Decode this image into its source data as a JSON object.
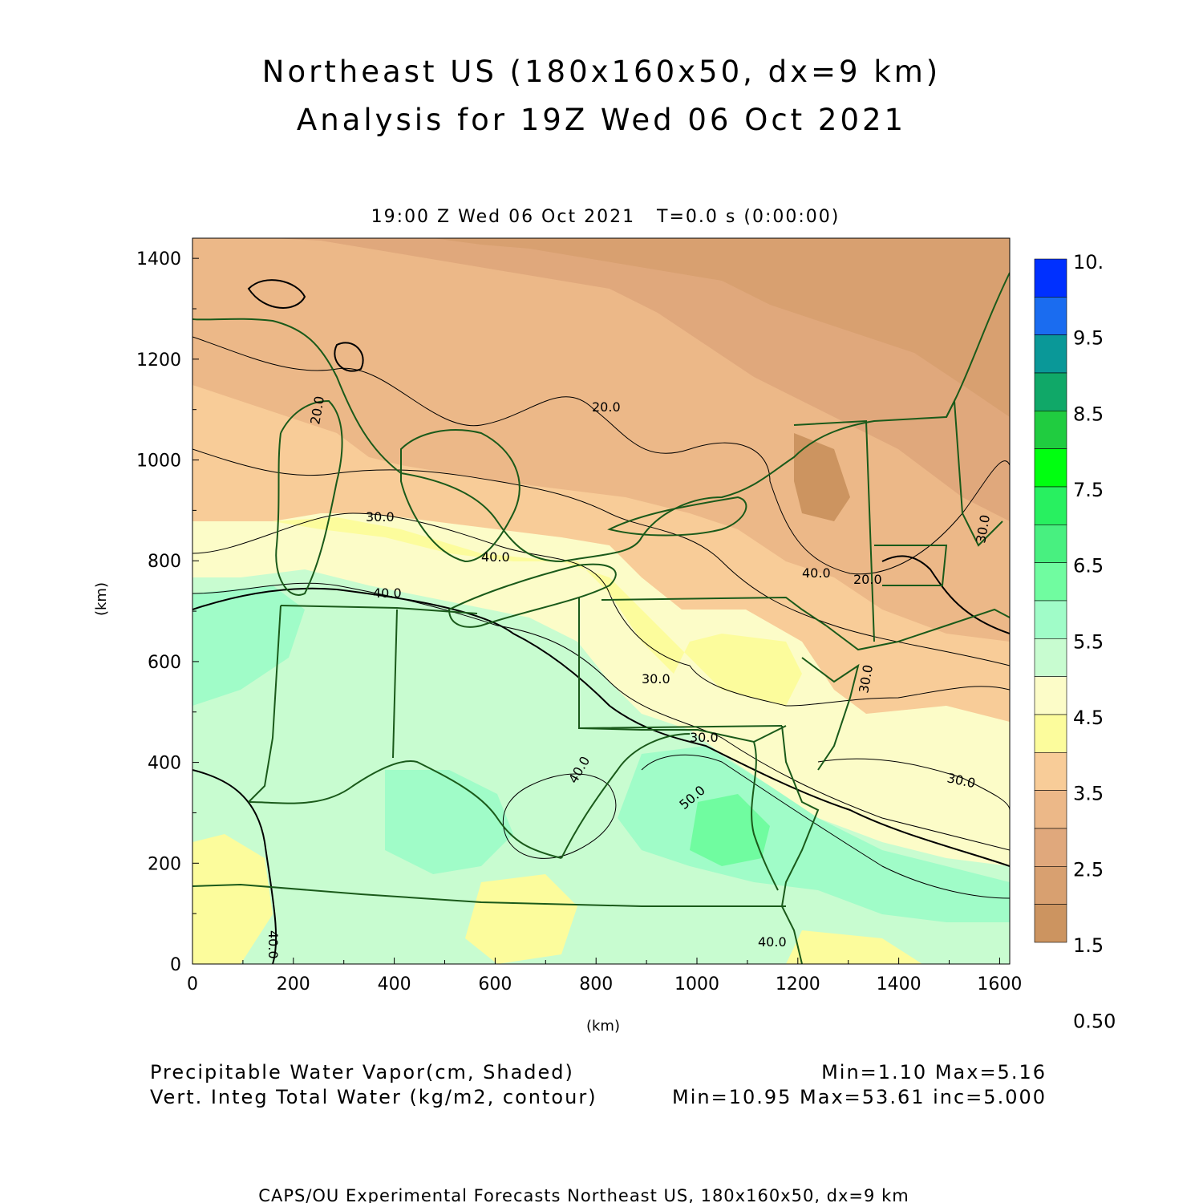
{
  "title": {
    "line1": "Northeast US (180x160x50, dx=9 km)",
    "line2": "Analysis for 19Z Wed 06 Oct 2021"
  },
  "valid_time": "19:00 Z Wed 06 Oct 2021   T=0.0 s (0:00:00)",
  "axes": {
    "x_unit": "(km)",
    "y_unit": "(km)",
    "x_ticks": [
      "0",
      "200",
      "400",
      "600",
      "800",
      "1000",
      "1200",
      "1400",
      "1600"
    ],
    "y_ticks": [
      "0",
      "200",
      "400",
      "600",
      "800",
      "1000",
      "1200",
      "1400"
    ],
    "x_range": [
      0,
      1620
    ],
    "y_range": [
      0,
      1440
    ]
  },
  "colorbar": {
    "labels": [
      "10.",
      "9.5",
      "8.5",
      "7.5",
      "6.5",
      "5.5",
      "4.5",
      "3.5",
      "2.5",
      "1.5",
      "0.50"
    ],
    "colors": [
      "#0030ff",
      "#1a6cf0",
      "#0a9898",
      "#10a868",
      "#20cc40",
      "#00ff10",
      "#28f060",
      "#48f080",
      "#70fca0",
      "#a0fcc8",
      "#c8fcd0",
      "#fcfcc8",
      "#fcfc9c",
      "#f8cc98",
      "#ecb888",
      "#e0a87c",
      "#d8a070",
      "#cc9460"
    ]
  },
  "contour_labels": [
    "20.0",
    "20.0",
    "20.0",
    "30.0",
    "30.0",
    "30.0",
    "30.0",
    "30.0",
    "30.0",
    "40.0",
    "40.0",
    "40.0",
    "40.0",
    "40.0",
    "40.0",
    "50.0"
  ],
  "footer": {
    "shaded_label": "Precipitable Water Vapor(cm, Shaded)",
    "shaded_stats": "Min=1.10 Max=5.16",
    "contour_label": "Vert. Integ Total Water (kg/m2, contour)",
    "contour_stats": "Min=10.95 Max=53.61 inc=5.000",
    "credit": "CAPS/OU Experimental Forecasts  Northeast US, 180x160x50, dx=9 km"
  }
}
